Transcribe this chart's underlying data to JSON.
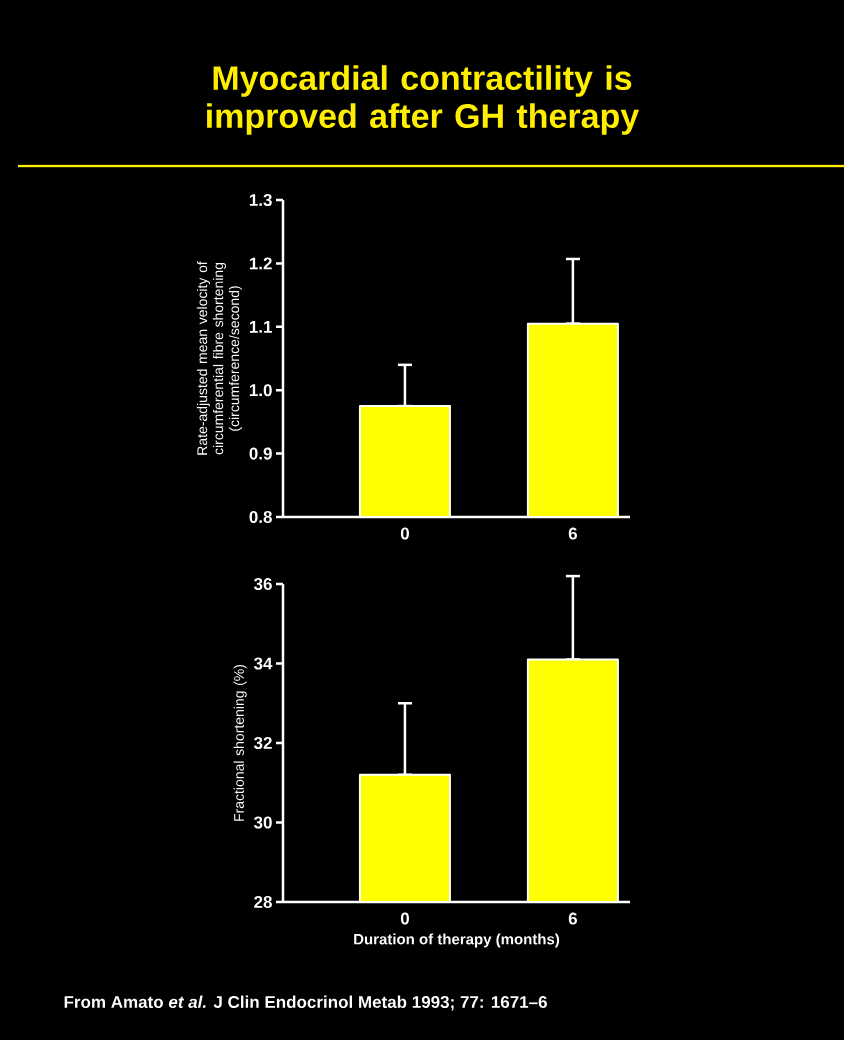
{
  "chart_data": [
    {
      "type": "bar",
      "title": "Myocardial contractility is improved after GH therapy",
      "ylabel": "Rate-adjusted mean velocity of circumferential fibre shortening (circumference/second)",
      "categories": [
        "0",
        "6"
      ],
      "values": [
        0.975,
        1.105
      ],
      "errors": [
        [
          0.975,
          1.04
        ],
        [
          1.105,
          1.207
        ]
      ],
      "color": "#ffff00",
      "ylim": [
        0.8,
        1.3
      ],
      "yticks": [
        0.8,
        0.9,
        {
          "value": 1.0,
          "label": "1.0"
        },
        1.1,
        1.2,
        1.3
      ]
    },
    {
      "type": "bar",
      "ylabel": "Fractional shortening (%)",
      "xlabel": "Duration of therapy (months)",
      "categories": [
        "0",
        "6"
      ],
      "values": [
        31.2,
        34.1
      ],
      "errors": [
        [
          31.2,
          33.0
        ],
        [
          34.1,
          36.2
        ]
      ],
      "color": "#ffff00",
      "ylim": [
        28,
        36
      ],
      "yticks": [
        28,
        30,
        32,
        34,
        36
      ],
      "annotations": [
        "From Amato *et al.* J Clin Endocrinol Metab 1993; 77: 1671–6"
      ]
    }
  ]
}
